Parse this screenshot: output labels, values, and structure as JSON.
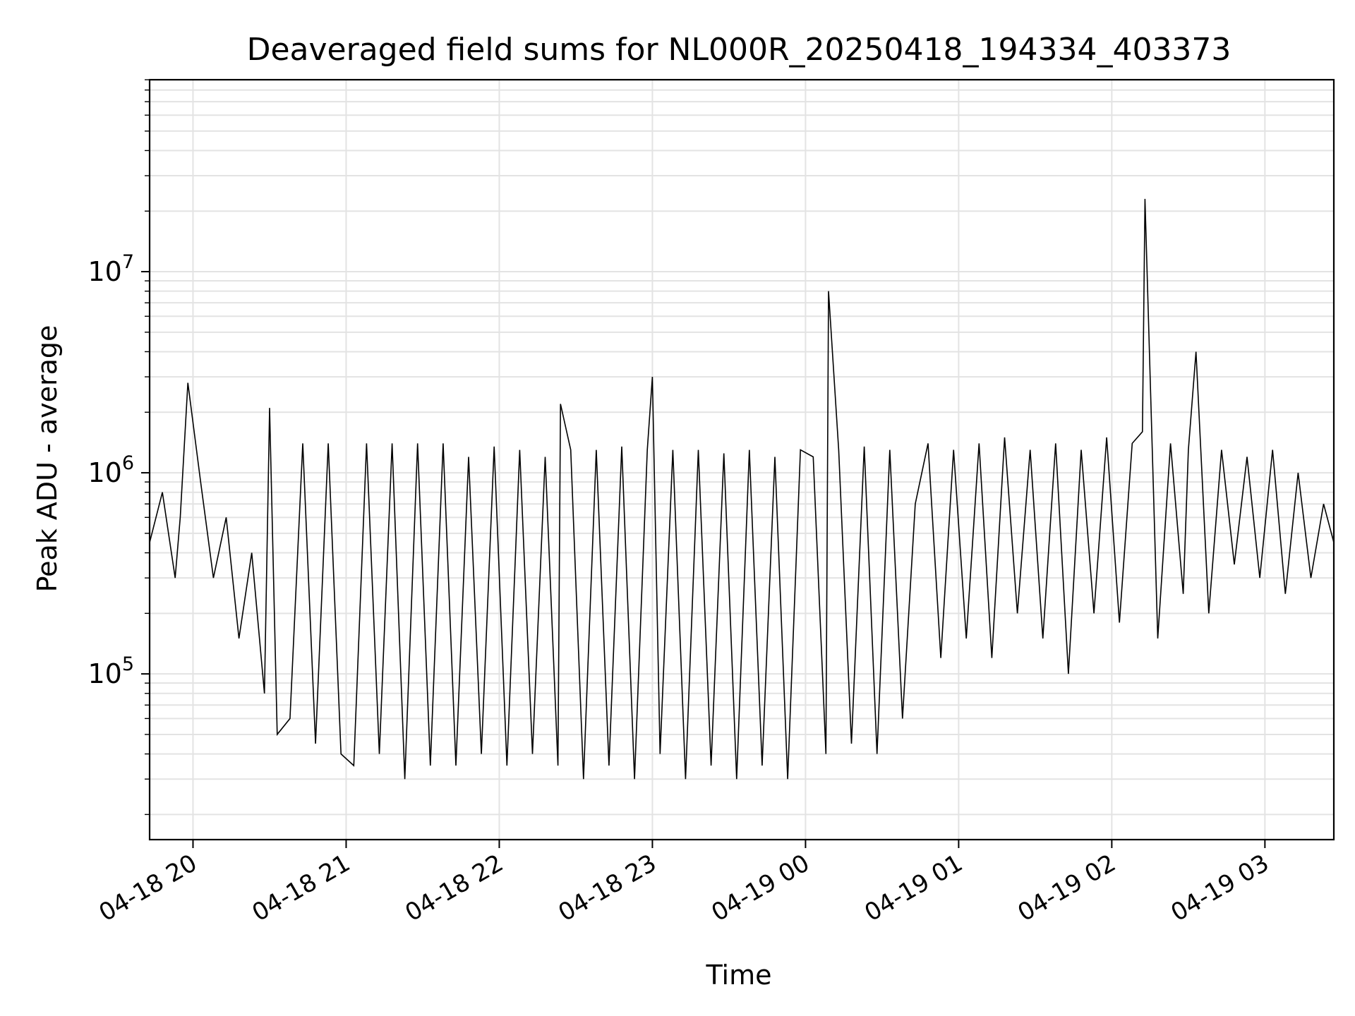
{
  "chart_data": {
    "type": "line",
    "title": "Deaveraged field sums for NL000R_20250418_194334_403373",
    "xlabel": "Time",
    "ylabel": "Peak ADU - average",
    "y_scale": "log",
    "ylim": [
      15000,
      90000000
    ],
    "xlim": [
      "2025-04-18 19:43",
      "2025-04-19 03:27"
    ],
    "grid": true,
    "legend": "none",
    "line_color": "#000000",
    "x_ticks": [
      {
        "label": "04-18 20",
        "t": "2025-04-18 20:00"
      },
      {
        "label": "04-18 21",
        "t": "2025-04-18 21:00"
      },
      {
        "label": "04-18 22",
        "t": "2025-04-18 22:00"
      },
      {
        "label": "04-18 23",
        "t": "2025-04-18 23:00"
      },
      {
        "label": "04-19 00",
        "t": "2025-04-19 00:00"
      },
      {
        "label": "04-19 01",
        "t": "2025-04-19 01:00"
      },
      {
        "label": "04-19 02",
        "t": "2025-04-19 02:00"
      },
      {
        "label": "04-19 03",
        "t": "2025-04-19 03:00"
      }
    ],
    "y_ticks": [
      {
        "base": "10",
        "exp": "5",
        "value": 100000
      },
      {
        "base": "10",
        "exp": "6",
        "value": 1000000
      },
      {
        "base": "10",
        "exp": "7",
        "value": 10000000
      }
    ],
    "series": [
      {
        "x": [
          "2025-04-18 19:43",
          "2025-04-18 19:48",
          "2025-04-18 19:53",
          "2025-04-18 19:55",
          "2025-04-18 19:58",
          "2025-04-18 20:03",
          "2025-04-18 20:08",
          "2025-04-18 20:13",
          "2025-04-18 20:18",
          "2025-04-18 20:23",
          "2025-04-18 20:28",
          "2025-04-18 20:30",
          "2025-04-18 20:33",
          "2025-04-18 20:38",
          "2025-04-18 20:43",
          "2025-04-18 20:48",
          "2025-04-18 20:53",
          "2025-04-18 20:58",
          "2025-04-18 21:03",
          "2025-04-18 21:08",
          "2025-04-18 21:13",
          "2025-04-18 21:18",
          "2025-04-18 21:23",
          "2025-04-18 21:28",
          "2025-04-18 21:33",
          "2025-04-18 21:38",
          "2025-04-18 21:43",
          "2025-04-18 21:48",
          "2025-04-18 21:53",
          "2025-04-18 21:58",
          "2025-04-18 22:03",
          "2025-04-18 22:08",
          "2025-04-18 22:13",
          "2025-04-18 22:18",
          "2025-04-18 22:23",
          "2025-04-18 22:24",
          "2025-04-18 22:28",
          "2025-04-18 22:33",
          "2025-04-18 22:38",
          "2025-04-18 22:43",
          "2025-04-18 22:48",
          "2025-04-18 22:53",
          "2025-04-18 22:58",
          "2025-04-18 23:00",
          "2025-04-18 23:03",
          "2025-04-18 23:08",
          "2025-04-18 23:13",
          "2025-04-18 23:18",
          "2025-04-18 23:23",
          "2025-04-18 23:28",
          "2025-04-18 23:33",
          "2025-04-18 23:38",
          "2025-04-18 23:43",
          "2025-04-18 23:48",
          "2025-04-18 23:53",
          "2025-04-18 23:58",
          "2025-04-19 00:03",
          "2025-04-19 00:08",
          "2025-04-19 00:09",
          "2025-04-19 00:13",
          "2025-04-19 00:18",
          "2025-04-19 00:23",
          "2025-04-19 00:28",
          "2025-04-19 00:33",
          "2025-04-19 00:38",
          "2025-04-19 00:43",
          "2025-04-19 00:48",
          "2025-04-19 00:53",
          "2025-04-19 00:58",
          "2025-04-19 01:03",
          "2025-04-19 01:08",
          "2025-04-19 01:13",
          "2025-04-19 01:18",
          "2025-04-19 01:23",
          "2025-04-19 01:28",
          "2025-04-19 01:33",
          "2025-04-19 01:38",
          "2025-04-19 01:43",
          "2025-04-19 01:48",
          "2025-04-19 01:53",
          "2025-04-19 01:58",
          "2025-04-19 02:03",
          "2025-04-19 02:08",
          "2025-04-19 02:12",
          "2025-04-19 02:13",
          "2025-04-19 02:18",
          "2025-04-19 02:23",
          "2025-04-19 02:28",
          "2025-04-19 02:30",
          "2025-04-19 02:33",
          "2025-04-19 02:38",
          "2025-04-19 02:43",
          "2025-04-19 02:48",
          "2025-04-19 02:53",
          "2025-04-19 02:58",
          "2025-04-19 03:03",
          "2025-04-19 03:08",
          "2025-04-19 03:13",
          "2025-04-19 03:18",
          "2025-04-19 03:23",
          "2025-04-19 03:27"
        ],
        "y": [
          450000,
          800000,
          300000,
          600000,
          2800000,
          900000,
          300000,
          600000,
          150000,
          400000,
          80000,
          2100000,
          50000,
          60000,
          1400000,
          45000,
          1400000,
          40000,
          35000,
          1400000,
          40000,
          1400000,
          30000,
          1400000,
          35000,
          1400000,
          35000,
          1200000,
          40000,
          1350000,
          35000,
          1300000,
          40000,
          1200000,
          35000,
          2200000,
          1300000,
          30000,
          1300000,
          35000,
          1350000,
          30000,
          1300000,
          3000000,
          40000,
          1300000,
          30000,
          1300000,
          35000,
          1250000,
          30000,
          1300000,
          35000,
          1200000,
          30000,
          1300000,
          1200000,
          40000,
          8000000,
          1300000,
          45000,
          1350000,
          40000,
          1300000,
          60000,
          700000,
          1400000,
          120000,
          1300000,
          150000,
          1400000,
          120000,
          1500000,
          200000,
          1300000,
          150000,
          1400000,
          100000,
          1300000,
          200000,
          1500000,
          180000,
          1400000,
          1600000,
          23000000,
          150000,
          1400000,
          250000,
          1300000,
          4000000,
          200000,
          1300000,
          350000,
          1200000,
          300000,
          1300000,
          250000,
          1000000,
          300000,
          700000,
          450000
        ]
      }
    ]
  }
}
